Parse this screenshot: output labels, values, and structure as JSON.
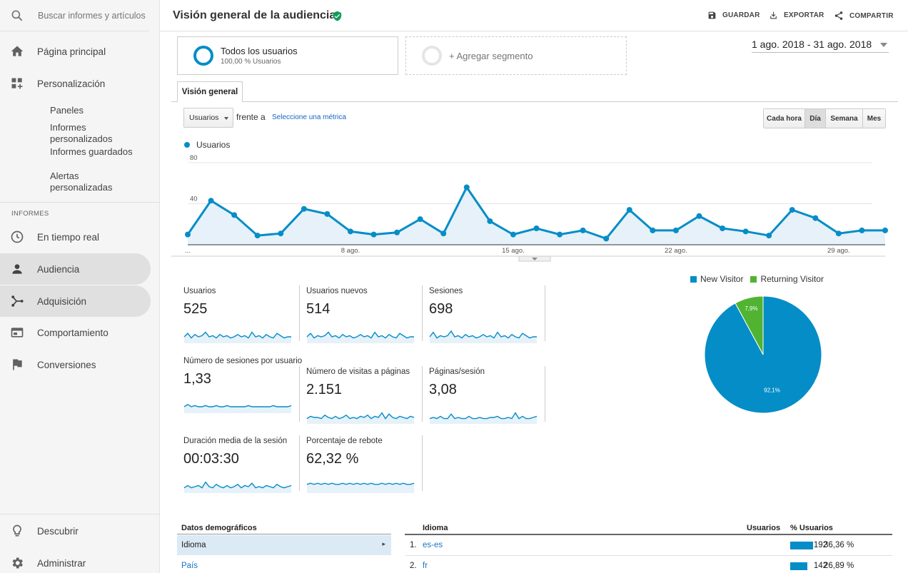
{
  "search": {
    "placeholder": "Buscar informes y artículos"
  },
  "sidebar": {
    "home": "Página principal",
    "customization": "Personalización",
    "sub_items": [
      "Paneles",
      "Informes personalizados",
      "Informes guardados",
      "Alertas personalizadas"
    ],
    "section_label": "INFORMES",
    "reports": [
      "En tiempo real",
      "Audiencia",
      "Adquisición",
      "Comportamiento",
      "Conversiones"
    ],
    "discover": "Descubrir",
    "admin": "Administrar"
  },
  "header": {
    "title": "Visión general de la audiencia",
    "save": "GUARDAR",
    "export": "EXPORTAR",
    "share": "COMPARTIR"
  },
  "segments": {
    "all_users": "Todos los usuarios",
    "all_users_sub": "100,00 % Usuarios",
    "add": "+ Agregar segmento"
  },
  "date_range": "1 ago. 2018 - 31 ago. 2018",
  "tab": "Visión general",
  "controls": {
    "metric": "Usuarios",
    "versus": "frente a",
    "choose_metric": "Seleccione una métrica",
    "granularity": [
      "Cada hora",
      "Día",
      "Semana",
      "Mes"
    ],
    "active_granularity": "Día"
  },
  "chart_data": [
    {
      "type": "area",
      "series": [
        {
          "name": "Usuarios",
          "values": [
            10,
            43,
            29,
            9,
            11,
            35,
            30,
            13,
            10,
            12,
            25,
            11,
            56,
            23,
            10,
            16,
            10,
            14,
            6,
            34,
            14,
            14,
            28,
            16,
            13,
            9,
            34,
            26,
            11,
            14,
            14
          ]
        }
      ],
      "x": [
        1,
        2,
        3,
        4,
        5,
        6,
        7,
        8,
        9,
        10,
        11,
        12,
        13,
        14,
        15,
        16,
        17,
        18,
        19,
        20,
        21,
        22,
        23,
        24,
        25,
        26,
        27,
        28,
        29,
        30,
        31
      ],
      "x_tick_labels": [
        "...",
        "8 ago.",
        "15 ago.",
        "22 ago.",
        "29 ago."
      ],
      "y_tick_labels": [
        "40",
        "80"
      ],
      "ylim": [
        0,
        80
      ],
      "color": "#058dc7",
      "legend": "top-left"
    },
    {
      "type": "pie",
      "categories": [
        "New Visitor",
        "Returning Visitor"
      ],
      "values": [
        92.1,
        7.9
      ],
      "labels": [
        "92,1%",
        "7,9%"
      ],
      "colors": [
        "#058dc7",
        "#50b432"
      ],
      "legend": "top"
    }
  ],
  "stats": [
    {
      "label": "Usuarios",
      "value": "525"
    },
    {
      "label": "Usuarios nuevos",
      "value": "514"
    },
    {
      "label": "Sesiones",
      "value": "698"
    },
    {
      "label": "Número de sesiones por usuario",
      "value": "1,33"
    },
    {
      "label": "Número de visitas a páginas",
      "value": "2.151"
    },
    {
      "label": "Páginas/sesión",
      "value": "3,08"
    },
    {
      "label": "Duración media de la sesión",
      "value": "00:03:30"
    },
    {
      "label": "Porcentaje de rebote",
      "value": "62,32 %"
    }
  ],
  "demographics": {
    "heading": "Datos demográficos",
    "items": [
      "Idioma",
      "País"
    ],
    "table": {
      "headers": [
        "Idioma",
        "Usuarios",
        "% Usuarios"
      ],
      "rows": [
        {
          "rank": "1.",
          "name": "es-es",
          "users": "192",
          "pct": "36,36 %",
          "fraction": 0.3636
        },
        {
          "rank": "2.",
          "name": "fr",
          "users": "142",
          "pct": "26,89 %",
          "fraction": 0.2689
        }
      ]
    }
  }
}
